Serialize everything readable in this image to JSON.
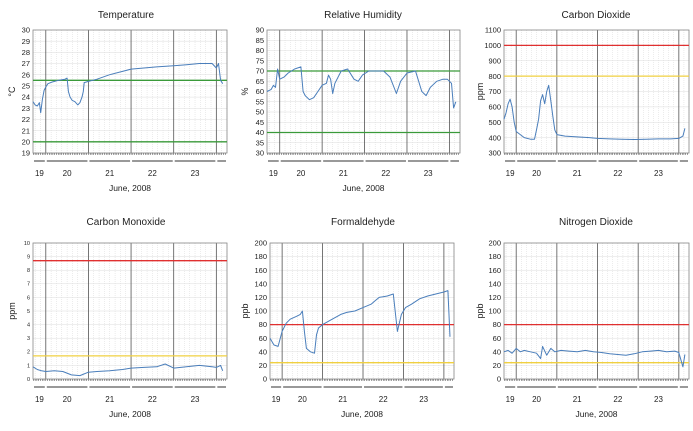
{
  "chart_data": [
    {
      "type": "line",
      "title": "Temperature",
      "ylabel": "°C",
      "xlabel": "June, 2008",
      "ylim": [
        19,
        30
      ],
      "yticks": [
        19,
        20,
        21,
        22,
        23,
        24,
        25,
        26,
        27,
        28,
        29,
        30
      ],
      "xlim": [
        18.7,
        23.25
      ],
      "day_labels": [
        "19",
        "20",
        "21",
        "22",
        "23"
      ],
      "reference_lines": [
        {
          "value": 25.5,
          "color": "#3a9a3a"
        },
        {
          "value": 20.0,
          "color": "#3a9a3a"
        }
      ],
      "series": [
        {
          "color": "#4a7ebb",
          "points": [
            [
              18.7,
              23.6
            ],
            [
              18.75,
              23.3
            ],
            [
              18.8,
              23.2
            ],
            [
              18.85,
              23.5
            ],
            [
              18.88,
              22.6
            ],
            [
              18.92,
              23.8
            ],
            [
              18.96,
              24.6
            ],
            [
              19.0,
              24.9
            ],
            [
              19.05,
              25.2
            ],
            [
              19.15,
              25.35
            ],
            [
              19.3,
              25.5
            ],
            [
              19.45,
              25.6
            ],
            [
              19.5,
              25.7
            ],
            [
              19.53,
              24.5
            ],
            [
              19.57,
              24.0
            ],
            [
              19.62,
              23.7
            ],
            [
              19.68,
              23.6
            ],
            [
              19.75,
              23.3
            ],
            [
              19.8,
              23.5
            ],
            [
              19.85,
              24.0
            ],
            [
              19.88,
              24.5
            ],
            [
              19.9,
              25.3
            ],
            [
              20.0,
              25.4
            ],
            [
              20.2,
              25.6
            ],
            [
              20.5,
              26.0
            ],
            [
              20.8,
              26.3
            ],
            [
              21.0,
              26.5
            ],
            [
              21.3,
              26.6
            ],
            [
              21.6,
              26.7
            ],
            [
              22.0,
              26.8
            ],
            [
              22.3,
              26.9
            ],
            [
              22.6,
              27.0
            ],
            [
              22.9,
              27.0
            ],
            [
              23.0,
              26.6
            ],
            [
              23.05,
              27.0
            ],
            [
              23.1,
              25.5
            ],
            [
              23.15,
              25.2
            ]
          ]
        }
      ]
    },
    {
      "type": "line",
      "title": "Relative Humidity",
      "ylabel": "%",
      "xlabel": "June, 2008",
      "ylim": [
        30,
        90
      ],
      "yticks": [
        30,
        35,
        40,
        45,
        50,
        55,
        60,
        65,
        70,
        75,
        80,
        85,
        90
      ],
      "xlim": [
        18.7,
        23.25
      ],
      "day_labels": [
        "19",
        "20",
        "21",
        "22",
        "23"
      ],
      "reference_lines": [
        {
          "value": 70,
          "color": "#3a9a3a"
        },
        {
          "value": 40,
          "color": "#3a9a3a"
        }
      ],
      "series": [
        {
          "color": "#4a7ebb",
          "points": [
            [
              18.7,
              60
            ],
            [
              18.8,
              61
            ],
            [
              18.85,
              63
            ],
            [
              18.9,
              62
            ],
            [
              18.95,
              71
            ],
            [
              19.0,
              66
            ],
            [
              19.1,
              67
            ],
            [
              19.2,
              69
            ],
            [
              19.35,
              71
            ],
            [
              19.5,
              72
            ],
            [
              19.55,
              60
            ],
            [
              19.6,
              58
            ],
            [
              19.7,
              56
            ],
            [
              19.8,
              57
            ],
            [
              19.9,
              60
            ],
            [
              20.0,
              63
            ],
            [
              20.1,
              64
            ],
            [
              20.15,
              68
            ],
            [
              20.2,
              66
            ],
            [
              20.25,
              59
            ],
            [
              20.3,
              64
            ],
            [
              20.45,
              70
            ],
            [
              20.6,
              71
            ],
            [
              20.75,
              66
            ],
            [
              20.85,
              65
            ],
            [
              20.95,
              68
            ],
            [
              21.1,
              70
            ],
            [
              21.3,
              70
            ],
            [
              21.45,
              70
            ],
            [
              21.6,
              67
            ],
            [
              21.75,
              59
            ],
            [
              21.85,
              65
            ],
            [
              22.0,
              69
            ],
            [
              22.2,
              70
            ],
            [
              22.35,
              60
            ],
            [
              22.45,
              58
            ],
            [
              22.55,
              62
            ],
            [
              22.7,
              65
            ],
            [
              22.85,
              66
            ],
            [
              22.95,
              66
            ],
            [
              23.05,
              64
            ],
            [
              23.1,
              52
            ],
            [
              23.15,
              55
            ]
          ]
        }
      ]
    },
    {
      "type": "line",
      "title": "Carbon Dioxide",
      "ylabel": "ppm",
      "xlabel": "",
      "ylim": [
        300,
        1100
      ],
      "yticks": [
        300,
        400,
        500,
        600,
        700,
        800,
        900,
        1000,
        1100
      ],
      "xlim": [
        18.7,
        23.25
      ],
      "day_labels": [
        "19",
        "20",
        "21",
        "22",
        "23"
      ],
      "reference_lines": [
        {
          "value": 1000,
          "color": "#e03030"
        },
        {
          "value": 800,
          "color": "#f0d040"
        }
      ],
      "series": [
        {
          "color": "#4a7ebb",
          "points": [
            [
              18.7,
              520
            ],
            [
              18.75,
              560
            ],
            [
              18.8,
              620
            ],
            [
              18.85,
              650
            ],
            [
              18.9,
              600
            ],
            [
              18.95,
              500
            ],
            [
              19.0,
              440
            ],
            [
              19.1,
              420
            ],
            [
              19.2,
              400
            ],
            [
              19.35,
              390
            ],
            [
              19.45,
              390
            ],
            [
              19.5,
              450
            ],
            [
              19.55,
              520
            ],
            [
              19.6,
              640
            ],
            [
              19.65,
              680
            ],
            [
              19.7,
              620
            ],
            [
              19.75,
              700
            ],
            [
              19.8,
              740
            ],
            [
              19.85,
              640
            ],
            [
              19.9,
              540
            ],
            [
              19.95,
              450
            ],
            [
              20.0,
              420
            ],
            [
              20.2,
              410
            ],
            [
              20.5,
              405
            ],
            [
              20.8,
              400
            ],
            [
              21.0,
              395
            ],
            [
              21.3,
              392
            ],
            [
              21.6,
              390
            ],
            [
              21.9,
              388
            ],
            [
              22.2,
              390
            ],
            [
              22.5,
              392
            ],
            [
              22.8,
              392
            ],
            [
              23.0,
              395
            ],
            [
              23.1,
              410
            ],
            [
              23.15,
              460
            ]
          ]
        }
      ]
    },
    {
      "type": "line",
      "title": "Carbon Monoxide",
      "ylabel": "ppm",
      "xlabel": "June, 2008",
      "ylim": [
        0,
        10
      ],
      "yticks": [
        0,
        1,
        2,
        3,
        4,
        5,
        6,
        7,
        8,
        9,
        10
      ],
      "xlim": [
        18.7,
        23.25
      ],
      "day_labels": [
        "19",
        "20",
        "21",
        "22",
        "23"
      ],
      "reference_lines": [
        {
          "value": 8.7,
          "color": "#e03030"
        },
        {
          "value": 1.7,
          "color": "#f0d040"
        }
      ],
      "series": [
        {
          "color": "#4a7ebb",
          "points": [
            [
              18.7,
              0.9
            ],
            [
              18.8,
              0.7
            ],
            [
              18.9,
              0.6
            ],
            [
              19.0,
              0.55
            ],
            [
              19.2,
              0.6
            ],
            [
              19.4,
              0.55
            ],
            [
              19.6,
              0.3
            ],
            [
              19.8,
              0.25
            ],
            [
              20.0,
              0.5
            ],
            [
              20.2,
              0.55
            ],
            [
              20.5,
              0.6
            ],
            [
              20.8,
              0.7
            ],
            [
              21.0,
              0.8
            ],
            [
              21.3,
              0.85
            ],
            [
              21.6,
              0.9
            ],
            [
              21.8,
              1.1
            ],
            [
              22.0,
              0.8
            ],
            [
              22.3,
              0.9
            ],
            [
              22.6,
              1.0
            ],
            [
              22.9,
              0.9
            ],
            [
              23.0,
              0.85
            ],
            [
              23.1,
              1.0
            ],
            [
              23.15,
              0.6
            ]
          ]
        }
      ]
    },
    {
      "type": "line",
      "title": "Formaldehyde",
      "ylabel": "ppb",
      "xlabel": "June, 2008",
      "ylim": [
        0,
        200
      ],
      "yticks": [
        0,
        20,
        40,
        60,
        80,
        100,
        120,
        140,
        160,
        180,
        200
      ],
      "xlim": [
        18.7,
        23.25
      ],
      "day_labels": [
        "19",
        "20",
        "21",
        "22",
        "23"
      ],
      "reference_lines": [
        {
          "value": 80,
          "color": "#e03030"
        },
        {
          "value": 24,
          "color": "#f0d040"
        }
      ],
      "series": [
        {
          "color": "#4a7ebb",
          "points": [
            [
              18.7,
              60
            ],
            [
              18.8,
              50
            ],
            [
              18.9,
              48
            ],
            [
              19.0,
              70
            ],
            [
              19.1,
              82
            ],
            [
              19.2,
              88
            ],
            [
              19.35,
              92
            ],
            [
              19.45,
              95
            ],
            [
              19.5,
              100
            ],
            [
              19.55,
              70
            ],
            [
              19.6,
              45
            ],
            [
              19.7,
              40
            ],
            [
              19.8,
              38
            ],
            [
              19.85,
              65
            ],
            [
              19.9,
              75
            ],
            [
              20.0,
              80
            ],
            [
              20.15,
              85
            ],
            [
              20.3,
              90
            ],
            [
              20.45,
              95
            ],
            [
              20.6,
              98
            ],
            [
              20.8,
              100
            ],
            [
              21.0,
              105
            ],
            [
              21.2,
              110
            ],
            [
              21.3,
              115
            ],
            [
              21.4,
              120
            ],
            [
              21.6,
              122
            ],
            [
              21.75,
              125
            ],
            [
              21.85,
              70
            ],
            [
              21.95,
              95
            ],
            [
              22.05,
              105
            ],
            [
              22.2,
              110
            ],
            [
              22.4,
              118
            ],
            [
              22.6,
              122
            ],
            [
              22.8,
              125
            ],
            [
              23.0,
              128
            ],
            [
              23.1,
              130
            ],
            [
              23.15,
              62
            ]
          ]
        }
      ]
    },
    {
      "type": "line",
      "title": "Nitrogen Dioxide",
      "ylabel": "ppb",
      "xlabel": "June, 2008",
      "ylim": [
        0,
        200
      ],
      "yticks": [
        0,
        20,
        40,
        60,
        80,
        100,
        120,
        140,
        160,
        180,
        200
      ],
      "xlim": [
        18.7,
        23.25
      ],
      "day_labels": [
        "19",
        "20",
        "21",
        "22",
        "23"
      ],
      "reference_lines": [
        {
          "value": 80,
          "color": "#e03030"
        },
        {
          "value": 24,
          "color": "#f0d040"
        }
      ],
      "series": [
        {
          "color": "#4a7ebb",
          "points": [
            [
              18.7,
              40
            ],
            [
              18.8,
              42
            ],
            [
              18.9,
              38
            ],
            [
              19.0,
              45
            ],
            [
              19.1,
              40
            ],
            [
              19.2,
              42
            ],
            [
              19.35,
              40
            ],
            [
              19.5,
              38
            ],
            [
              19.6,
              30
            ],
            [
              19.65,
              48
            ],
            [
              19.75,
              35
            ],
            [
              19.85,
              45
            ],
            [
              19.95,
              40
            ],
            [
              20.1,
              42
            ],
            [
              20.3,
              41
            ],
            [
              20.5,
              40
            ],
            [
              20.7,
              42
            ],
            [
              20.9,
              40
            ],
            [
              21.1,
              39
            ],
            [
              21.3,
              37
            ],
            [
              21.5,
              36
            ],
            [
              21.7,
              35
            ],
            [
              21.9,
              37
            ],
            [
              22.1,
              40
            ],
            [
              22.3,
              41
            ],
            [
              22.5,
              42
            ],
            [
              22.7,
              40
            ],
            [
              22.9,
              41
            ],
            [
              23.0,
              39
            ],
            [
              23.1,
              18
            ],
            [
              23.15,
              36
            ]
          ]
        }
      ]
    }
  ]
}
